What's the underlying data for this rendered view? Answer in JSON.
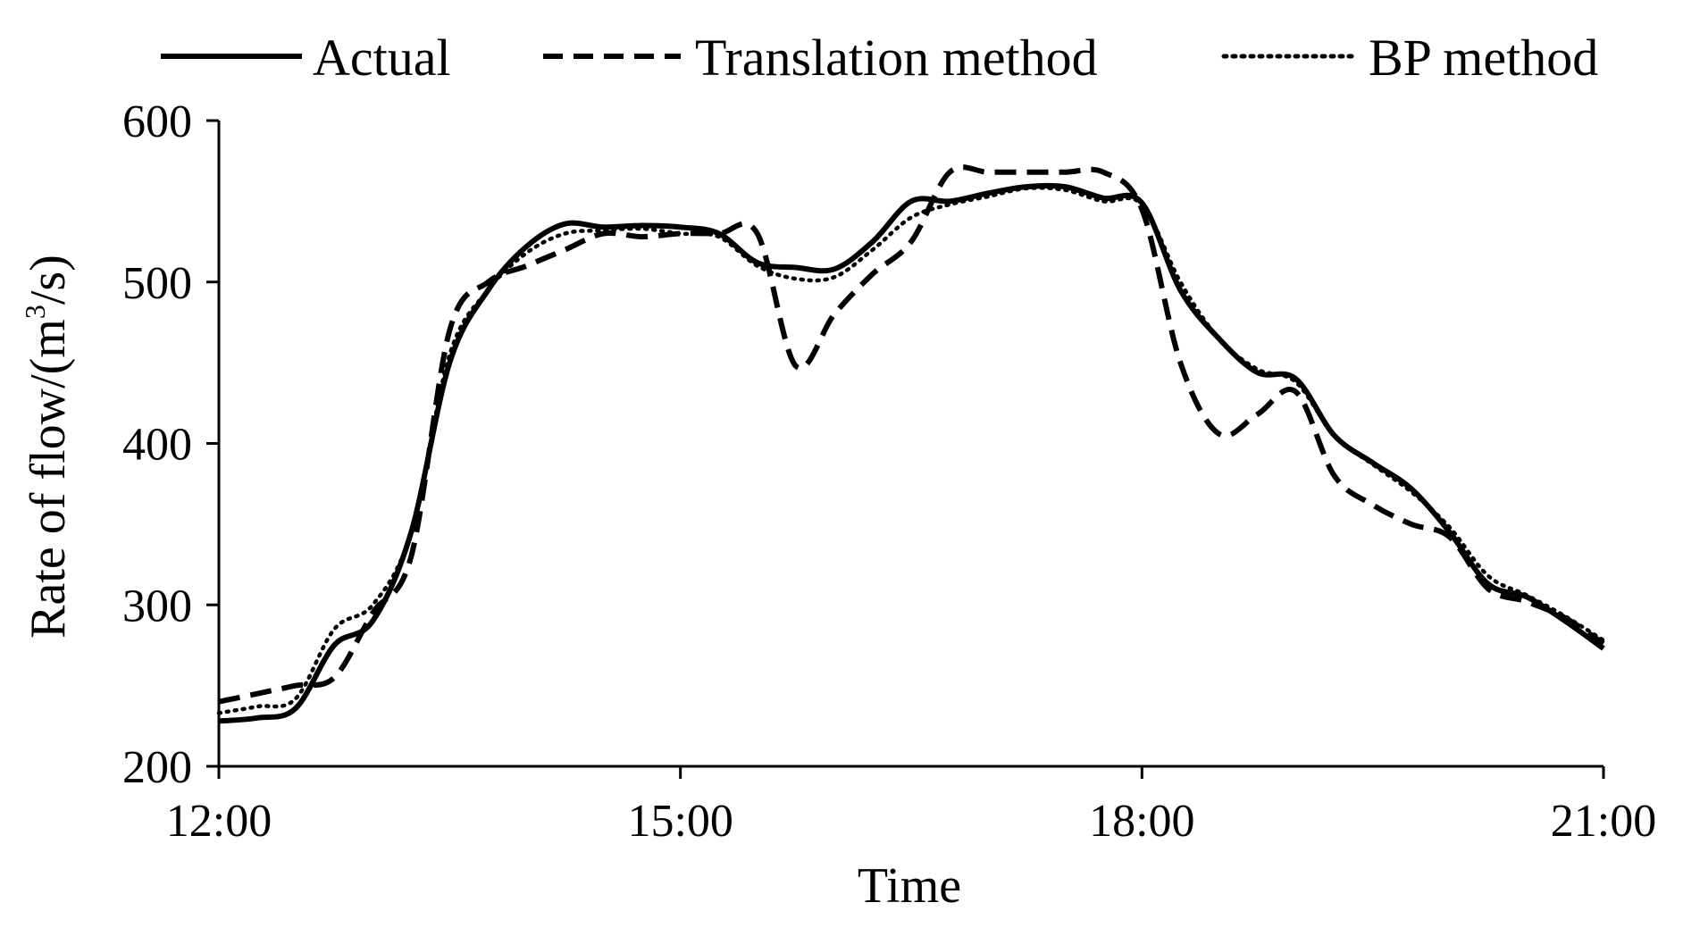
{
  "chart_data": {
    "type": "line",
    "title": "",
    "xlabel": "Time",
    "ylabel_main": "Rate of flow/(m",
    "ylabel_sup": "3",
    "ylabel_tail": "/s)",
    "xlim": [
      12,
      21
    ],
    "ylim": [
      200,
      600
    ],
    "x_ticks": [
      {
        "value": 12,
        "label": "12:00"
      },
      {
        "value": 15,
        "label": "15:00"
      },
      {
        "value": 18,
        "label": "18:00"
      },
      {
        "value": 21,
        "label": "21:00"
      }
    ],
    "y_ticks": [
      {
        "value": 200,
        "label": "200"
      },
      {
        "value": 300,
        "label": "300"
      },
      {
        "value": 400,
        "label": "400"
      },
      {
        "value": 500,
        "label": "500"
      },
      {
        "value": 600,
        "label": "600"
      }
    ],
    "grid": false,
    "legend_position": "top",
    "series": [
      {
        "name": "Actual",
        "style": "solid",
        "x": [
          12.0,
          12.25,
          12.5,
          12.75,
          13.0,
          13.25,
          13.5,
          13.75,
          14.0,
          14.25,
          14.5,
          14.75,
          15.0,
          15.25,
          15.5,
          15.75,
          16.0,
          16.25,
          16.5,
          16.75,
          17.0,
          17.25,
          17.5,
          17.75,
          18.0,
          18.25,
          18.5,
          18.75,
          19.0,
          19.25,
          19.5,
          19.75,
          20.0,
          20.25,
          20.5,
          20.75,
          21.0
        ],
        "values": [
          228,
          230,
          236,
          275,
          290,
          345,
          450,
          495,
          522,
          536,
          534,
          535,
          534,
          530,
          512,
          509,
          508,
          525,
          550,
          550,
          555,
          559,
          559,
          552,
          549,
          495,
          465,
          444,
          440,
          405,
          388,
          372,
          345,
          313,
          305,
          290,
          273
        ]
      },
      {
        "name": "Translation method",
        "style": "dashed",
        "x": [
          12.0,
          12.25,
          12.5,
          12.75,
          13.0,
          13.25,
          13.5,
          13.75,
          14.0,
          14.25,
          14.5,
          14.75,
          15.0,
          15.25,
          15.5,
          15.75,
          16.0,
          16.25,
          16.5,
          16.75,
          17.0,
          17.25,
          17.5,
          17.75,
          18.0,
          18.25,
          18.5,
          18.75,
          19.0,
          19.25,
          19.5,
          19.75,
          20.0,
          20.25,
          20.5,
          20.75,
          21.0
        ],
        "values": [
          240,
          245,
          250,
          255,
          295,
          330,
          470,
          500,
          510,
          520,
          530,
          528,
          530,
          530,
          530,
          448,
          480,
          505,
          525,
          568,
          568,
          568,
          568,
          568,
          545,
          450,
          406,
          418,
          432,
          380,
          362,
          350,
          342,
          310,
          302,
          292,
          276
        ]
      },
      {
        "name": "BP method",
        "style": "dotted",
        "x": [
          12.0,
          12.25,
          12.5,
          12.75,
          13.0,
          13.25,
          13.5,
          13.75,
          14.0,
          14.25,
          14.5,
          14.75,
          15.0,
          15.25,
          15.5,
          15.75,
          16.0,
          16.25,
          16.5,
          16.75,
          17.0,
          17.25,
          17.5,
          17.75,
          18.0,
          18.25,
          18.5,
          18.75,
          19.0,
          19.25,
          19.5,
          19.75,
          20.0,
          20.25,
          20.5,
          20.75,
          21.0
        ],
        "values": [
          233,
          237,
          242,
          285,
          300,
          345,
          455,
          495,
          518,
          530,
          532,
          533,
          530,
          528,
          510,
          502,
          503,
          520,
          540,
          548,
          553,
          558,
          557,
          550,
          548,
          500,
          465,
          446,
          438,
          405,
          387,
          370,
          348,
          318,
          306,
          293,
          278
        ]
      }
    ]
  }
}
